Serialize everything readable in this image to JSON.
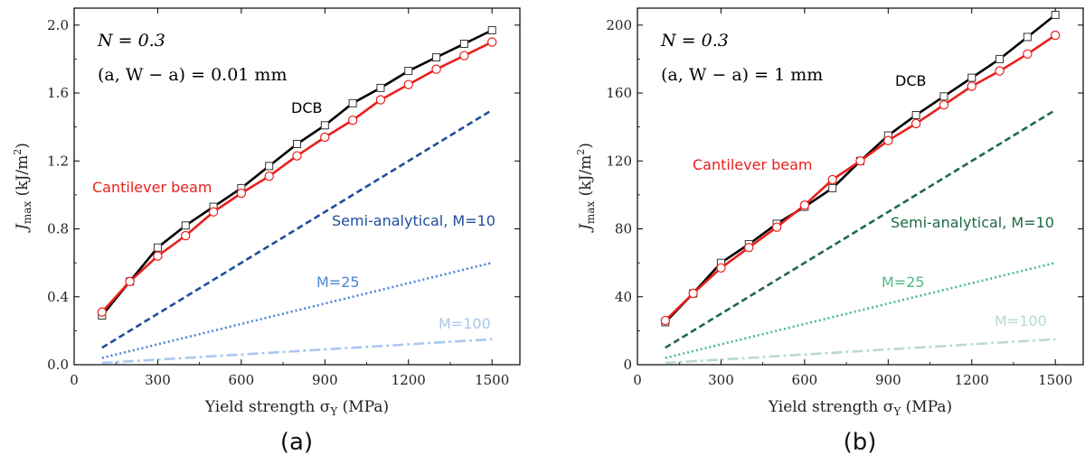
{
  "chart_data": [
    {
      "type": "line",
      "panel_caption": "(a)",
      "xlabel": "Yield strength σ",
      "xlabel_sub": "Y",
      "xlabel_unit": "(MPa)",
      "ylabel": "J",
      "ylabel_sub": "max",
      "ylabel_unit": "(kJ/m",
      "ylabel_unit_sup": "2",
      "ylabel_unit_close": ")",
      "xlim": [
        0,
        1600
      ],
      "ylim": [
        0,
        2.1
      ],
      "xticks": [
        "0",
        "300",
        "600",
        "900",
        "1200",
        "1500"
      ],
      "xtick_values": [
        0,
        300,
        600,
        900,
        1200,
        1500
      ],
      "yticks": [
        "0.0",
        "0.4",
        "0.8",
        "1.2",
        "1.6",
        "2.0"
      ],
      "ytick_values": [
        0.0,
        0.4,
        0.8,
        1.2,
        1.6,
        2.0
      ],
      "annotation_1": "N = 0.3",
      "annotation_2": "(a, W − a) = 0.01 mm",
      "x": [
        100,
        200,
        300,
        400,
        500,
        600,
        700,
        800,
        900,
        1000,
        1100,
        1200,
        1300,
        1400,
        1500
      ],
      "series": [
        {
          "name": "DCB",
          "color": "#000000",
          "marker": "square",
          "dash": "solid",
          "values": [
            0.29,
            0.49,
            0.69,
            0.82,
            0.93,
            1.04,
            1.17,
            1.3,
            1.41,
            1.54,
            1.63,
            1.73,
            1.81,
            1.89,
            1.97
          ]
        },
        {
          "name": "Cantilever beam",
          "color": "#e8201c",
          "marker": "circle",
          "dash": "solid",
          "values": [
            0.31,
            0.49,
            0.64,
            0.76,
            0.9,
            1.01,
            1.11,
            1.23,
            1.34,
            1.44,
            1.56,
            1.65,
            1.74,
            1.82,
            1.9
          ]
        },
        {
          "name": "Semi-analytical, M=10",
          "color": "#1f4e9a",
          "marker": "none",
          "dash": "dashed",
          "x": [
            100,
            1500
          ],
          "values": [
            0.1,
            1.5
          ]
        },
        {
          "name": "M=25",
          "color": "#4a86d6",
          "marker": "none",
          "dash": "dotted",
          "x": [
            100,
            1500
          ],
          "values": [
            0.04,
            0.6
          ]
        },
        {
          "name": "M=100",
          "color": "#aac8ee",
          "marker": "none",
          "dash": "dashdot",
          "x": [
            100,
            1500
          ],
          "values": [
            0.01,
            0.15
          ]
        }
      ]
    },
    {
      "type": "line",
      "panel_caption": "(b)",
      "xlabel": "Yield strength σ",
      "xlabel_sub": "Y",
      "xlabel_unit": "(MPa)",
      "ylabel": "J",
      "ylabel_sub": "max",
      "ylabel_unit": "(kJ/m",
      "ylabel_unit_sup": "2",
      "ylabel_unit_close": ")",
      "xlim": [
        0,
        1600
      ],
      "ylim": [
        0,
        210
      ],
      "xticks": [
        "0",
        "300",
        "600",
        "900",
        "1200",
        "1500"
      ],
      "xtick_values": [
        0,
        300,
        600,
        900,
        1200,
        1500
      ],
      "yticks": [
        "0",
        "40",
        "80",
        "120",
        "160",
        "200"
      ],
      "ytick_values": [
        0,
        40,
        80,
        120,
        160,
        200
      ],
      "annotation_1": "N = 0.3",
      "annotation_2": "(a, W − a) = 1 mm",
      "x": [
        100,
        200,
        300,
        400,
        500,
        600,
        700,
        800,
        900,
        1000,
        1100,
        1200,
        1300,
        1400,
        1500
      ],
      "series": [
        {
          "name": "DCB",
          "color": "#000000",
          "marker": "square",
          "dash": "solid",
          "values": [
            25,
            42,
            60,
            71,
            83,
            93,
            104,
            120,
            135,
            147,
            158,
            169,
            180,
            193,
            206
          ]
        },
        {
          "name": "Cantilever beam",
          "color": "#e8201c",
          "marker": "circle",
          "dash": "solid",
          "values": [
            26,
            42,
            57,
            69,
            81,
            94,
            109,
            120,
            132,
            142,
            153,
            164,
            173,
            183,
            194
          ]
        },
        {
          "name": "Semi-analytical, M=10",
          "color": "#1e6a45",
          "marker": "none",
          "dash": "dashed",
          "x": [
            100,
            1500
          ],
          "values": [
            10,
            150
          ]
        },
        {
          "name": "M=25",
          "color": "#4dbb85",
          "marker": "none",
          "dash": "dotted",
          "x": [
            100,
            1500
          ],
          "values": [
            4,
            60
          ]
        },
        {
          "name": "M=100",
          "color": "#b8dcc9",
          "marker": "none",
          "dash": "dashdot",
          "x": [
            100,
            1500
          ],
          "values": [
            1,
            15
          ]
        }
      ]
    }
  ]
}
